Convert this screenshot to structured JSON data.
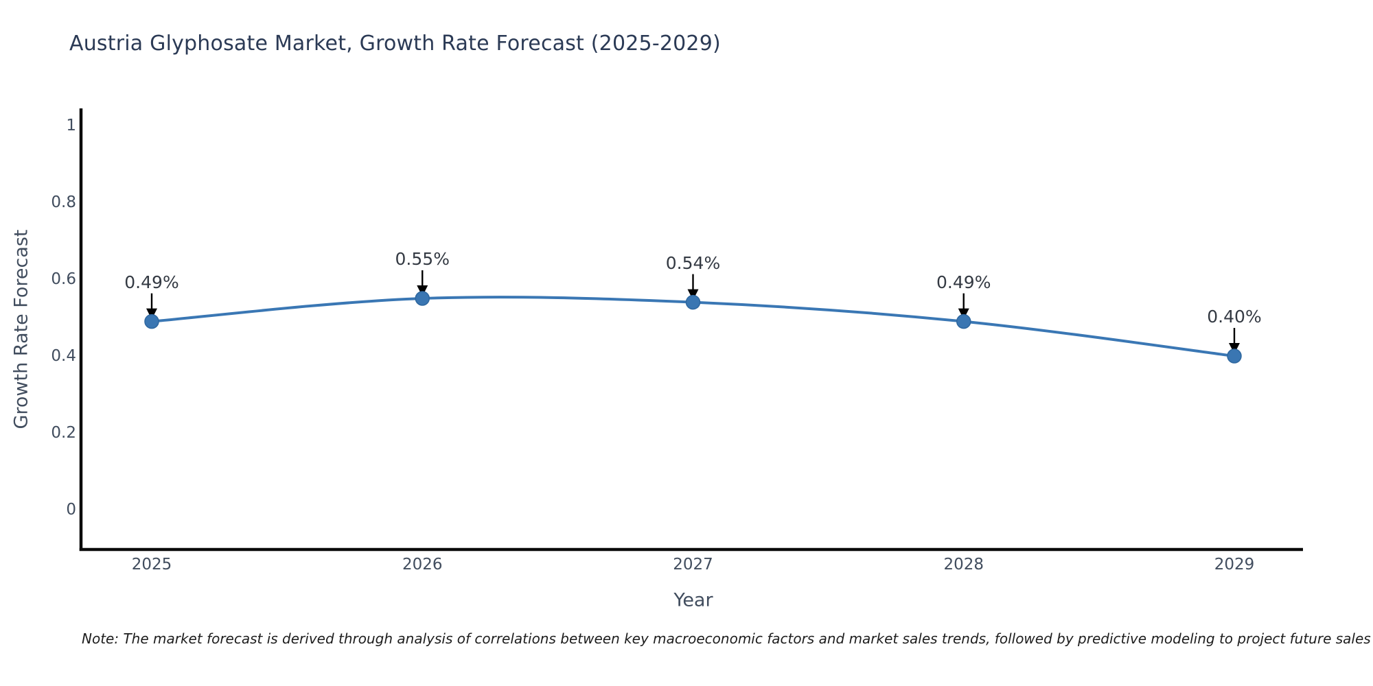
{
  "chart_data": {
    "type": "line",
    "title": "Austria Glyphosate Market, Growth Rate Forecast (2025-2029)",
    "xlabel": "Year",
    "ylabel": "Growth Rate Forecast",
    "categories": [
      "2025",
      "2026",
      "2027",
      "2028",
      "2029"
    ],
    "series": [
      {
        "name": "Growth Rate Forecast",
        "values": [
          0.49,
          0.55,
          0.54,
          0.49,
          0.4
        ]
      }
    ],
    "data_labels": [
      "0.49%",
      "0.55%",
      "0.54%",
      "0.49%",
      "0.40%"
    ],
    "ylim": [
      0,
      1
    ],
    "yticks": {
      "values": [
        0,
        0.2,
        0.4,
        0.6,
        0.8,
        1
      ],
      "labels": [
        "0",
        "0.2",
        "0.4",
        "0.6",
        "0.8",
        "1"
      ]
    },
    "grid": false,
    "legend_position": "none",
    "line_shape": "spline",
    "colors": {
      "line": "#3a77b4",
      "marker_fill": "#3a76b2",
      "marker_edge": "#2e679f",
      "axis_line": "#0a0a0a",
      "tick_text": "#414d5e",
      "annotation_text": "#343a43",
      "arrow": "#000000",
      "title_text": "#2b3a55"
    }
  },
  "note": {
    "text": "Note: The market forecast is derived through analysis of correlations between key macroeconomic factors and market sales trends, followed by predictive modeling to project future sales"
  }
}
